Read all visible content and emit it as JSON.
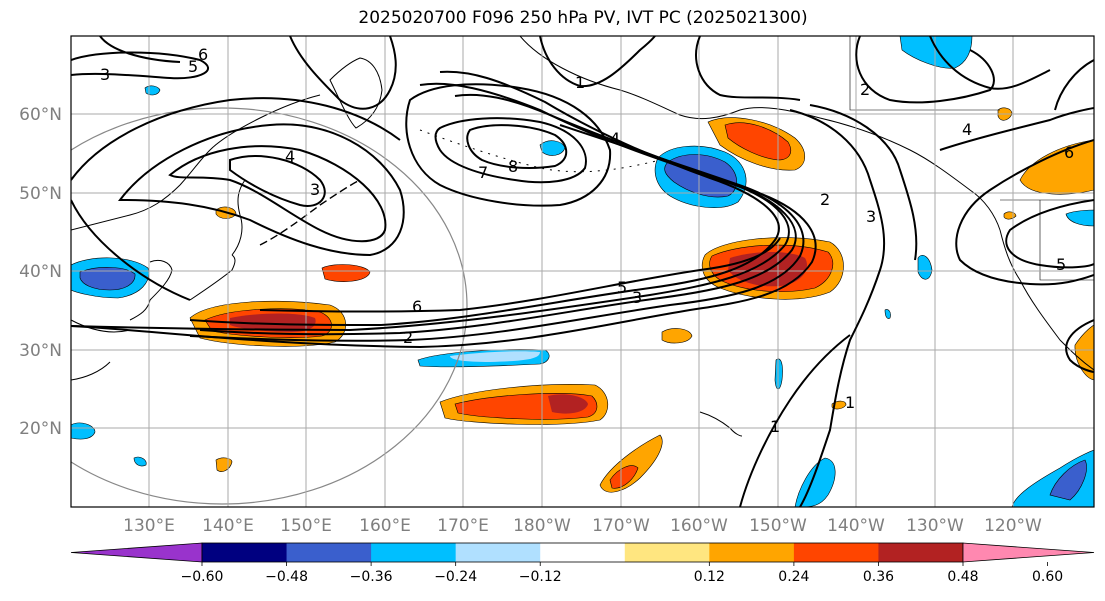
{
  "title": "2025020700 F096 250 hPa PV, IVT PC (2025021300)",
  "lat_labels": [
    "60°N",
    "50°N",
    "40°N",
    "30°N",
    "20°N"
  ],
  "lon_labels": [
    "130°E",
    "140°E",
    "150°E",
    "160°E",
    "170°E",
    "180°W",
    "170°W",
    "160°W",
    "150°W",
    "140°W",
    "130°W",
    "120°W"
  ],
  "colorbar": {
    "colors": [
      "#9933cc",
      "#000080",
      "#3a5fcd",
      "#00bfff",
      "#b0e0ff",
      "#ffffff",
      "#ffe680",
      "#ffa500",
      "#ff4500",
      "#b22222",
      "#ff88b0"
    ],
    "tick_labels": [
      "−0.60",
      "−0.48",
      "−0.36",
      "−0.24",
      "−0.12",
      "0.12",
      "0.24",
      "0.36",
      "0.48",
      "0.60"
    ]
  },
  "contour_labels": [
    "6",
    "5",
    "3",
    "4",
    "3",
    "7",
    "8",
    "1",
    "4",
    "2",
    "3",
    "2",
    "4",
    "6",
    "5",
    "5",
    "3",
    "6",
    "2",
    "1",
    "1"
  ]
}
